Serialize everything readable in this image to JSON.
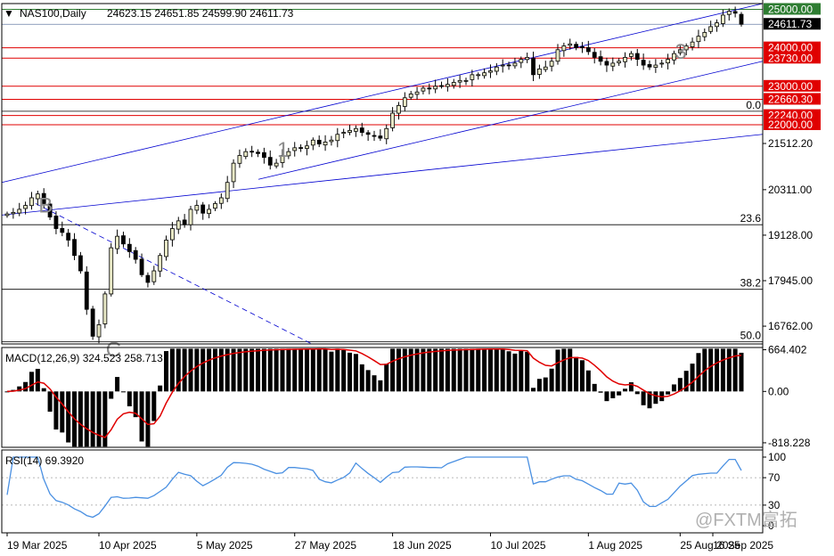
{
  "chart_data": {
    "type": "candlestick",
    "symbol_header": "NAS100,Daily",
    "ohlc_header": "24623.15 24651.85 24599.90 24611.73",
    "current_price": "24611.73",
    "y_range": [
      16300,
      25150
    ],
    "price_ticks": [
      "25000.00",
      "24611.73",
      "24000.00",
      "23730.00",
      "23000.00",
      "22660.30",
      "22240.00",
      "22000.00",
      "21512.20",
      "20311.00",
      "19128.00",
      "17945.00",
      "16762.00"
    ],
    "x_ticks": [
      "19 Mar 2025",
      "10 Apr 2025",
      "5 May 2025",
      "27 May 2025",
      "18 Jun 2025",
      "10 Jul 2025",
      "1 Aug 2025",
      "25 Aug 2025",
      "16 Sep 2025"
    ],
    "levels": [
      {
        "price": 25000,
        "label": "25000.00",
        "color": "#2e7d32"
      },
      {
        "price": 24000,
        "label": "24000.00",
        "color": "#e00000"
      },
      {
        "price": 23730,
        "label": "23730.00",
        "color": "#e00000"
      },
      {
        "price": 23000,
        "label": "23000.00",
        "color": "#e00000"
      },
      {
        "price": 22660.3,
        "label": "22660.30",
        "color": "#e00000"
      },
      {
        "price": 22240,
        "label": "22240.00",
        "color": "#e00000"
      },
      {
        "price": 22000,
        "label": "22000.00",
        "color": "#e00000"
      }
    ],
    "fib_levels": [
      {
        "label": "0.0",
        "price": 22350
      },
      {
        "label": "23.6",
        "price": 19400
      },
      {
        "label": "38.2",
        "price": 17720
      },
      {
        "label": "50.0",
        "price": 16360
      }
    ],
    "wave_labels": [
      "B",
      "C",
      "1",
      "3"
    ],
    "closes": [
      19680,
      19720,
      19800,
      19900,
      20100,
      20200,
      19950,
      19600,
      19300,
      19200,
      19000,
      18600,
      18200,
      17200,
      16500,
      16800,
      17600,
      18800,
      19100,
      18900,
      18700,
      18500,
      18100,
      17900,
      18200,
      18600,
      19000,
      19300,
      19500,
      19400,
      19800,
      19900,
      19700,
      19800,
      19950,
      20100,
      20500,
      21000,
      21200,
      21300,
      21300,
      21250,
      21150,
      20950,
      21000,
      21200,
      21300,
      21400,
      21400,
      21450,
      21600,
      21500,
      21550,
      21600,
      21750,
      21800,
      21850,
      21900,
      21800,
      21750,
      21700,
      21650,
      21900,
      22300,
      22500,
      22700,
      22800,
      22850,
      22950,
      22950,
      23000,
      23000,
      23050,
      23100,
      23150,
      23150,
      23300,
      23300,
      23350,
      23400,
      23500,
      23550,
      23550,
      23600,
      23700,
      23750,
      23300,
      23450,
      23500,
      23650,
      23950,
      24050,
      24100,
      24000,
      24000,
      23900,
      23750,
      23650,
      23550,
      23600,
      23650,
      23750,
      23850,
      23700,
      23550,
      23500,
      23550,
      23600,
      23700,
      23850,
      23950,
      24050,
      24150,
      24300,
      24400,
      24550,
      24650,
      24850,
      24950,
      24900,
      24611.73
    ],
    "macd": {
      "label": "MACD(12,26,9)",
      "main": "324.523",
      "signal": "258.713",
      "ticks": [
        "664.402",
        "0.00",
        "-818.228"
      ],
      "range": [
        -890,
        700
      ]
    },
    "rsi": {
      "label": "RSI(14)",
      "value": "69.3920",
      "ticks": [
        "100",
        "70",
        "30",
        "0"
      ]
    },
    "watermark": "@FXTM富拓",
    "colors": {
      "bull": "#e7e7c5",
      "bear": "#000000",
      "channel": "#0000d0",
      "signal": "#e00000",
      "rsi": "#4a90e2"
    }
  }
}
